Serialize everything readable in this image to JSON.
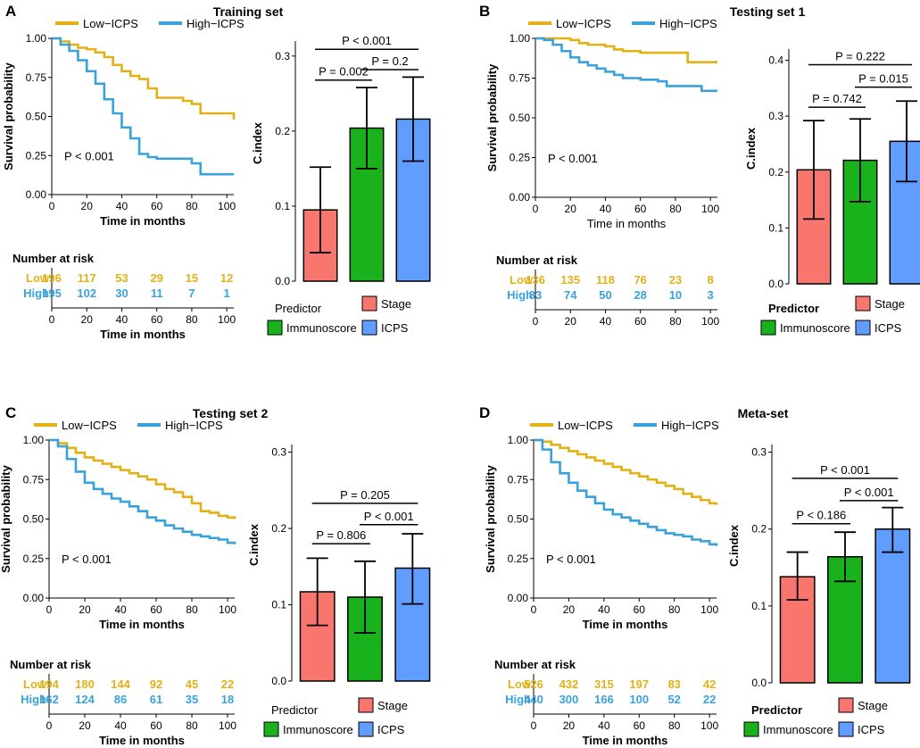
{
  "colors": {
    "low": "#E3B116",
    "high": "#39A2DB",
    "stage": "#F8766D",
    "immunoscore": "#19B21C",
    "icps": "#619CFF"
  },
  "chart_data": [
    {
      "label": "A",
      "title": "Training set",
      "km": {
        "type": "line",
        "legend": [
          "Low−ICPS",
          "High−ICPS"
        ],
        "ylabel": "Survival probability",
        "xlabel": "Time in months",
        "yticks": [
          "0.00",
          "0.25",
          "0.50",
          "0.75",
          "1.00"
        ],
        "xticks": [
          "0",
          "20",
          "40",
          "60",
          "80",
          "100"
        ],
        "xlim": [
          0,
          104
        ],
        "ylim": [
          0,
          1
        ],
        "pvalue": "P < 0.001",
        "series": [
          {
            "name": "Low-ICPS",
            "x": [
              0,
              5,
              10,
              15,
              20,
              25,
              30,
              35,
              40,
              45,
              50,
              55,
              60,
              65,
              70,
              75,
              80,
              85,
              90,
              95,
              100,
              104
            ],
            "y": [
              1,
              0.98,
              0.96,
              0.94,
              0.93,
              0.91,
              0.88,
              0.83,
              0.79,
              0.76,
              0.74,
              0.68,
              0.62,
              0.62,
              0.62,
              0.6,
              0.58,
              0.52,
              0.52,
              0.52,
              0.52,
              0.48
            ]
          },
          {
            "name": "High-ICPS",
            "x": [
              0,
              5,
              10,
              15,
              20,
              25,
              30,
              35,
              40,
              45,
              50,
              55,
              60,
              65,
              70,
              75,
              80,
              85,
              90,
              95,
              100,
              104
            ],
            "y": [
              1,
              0.96,
              0.92,
              0.86,
              0.79,
              0.71,
              0.61,
              0.52,
              0.43,
              0.36,
              0.26,
              0.24,
              0.23,
              0.23,
              0.23,
              0.23,
              0.2,
              0.13,
              0.13,
              0.13,
              0.13,
              0.13
            ]
          }
        ]
      },
      "risk": {
        "title": "Number at risk",
        "rows": [
          {
            "name": "Low",
            "values": [
              "196",
              "117",
              "53",
              "29",
              "15",
              "12"
            ]
          },
          {
            "name": "High",
            "values": [
              "195",
              "102",
              "30",
              "11",
              "7",
              "1"
            ]
          }
        ],
        "xticks": [
          "0",
          "20",
          "40",
          "60",
          "80",
          "100"
        ],
        "xlabel": "Time in months"
      },
      "bar": {
        "type": "bar",
        "ylabel": "C.index",
        "categories": [
          "Stage",
          "Immunoscore",
          "ICPS"
        ],
        "values": [
          0.095,
          0.204,
          0.216
        ],
        "err_lo": [
          0.038,
          0.15,
          0.16
        ],
        "err_hi": [
          0.152,
          0.258,
          0.272
        ],
        "ylim": [
          0,
          0.32
        ],
        "yticks": [
          "0.0",
          "0.1",
          "0.2",
          "0.3"
        ],
        "tick_values": [
          0,
          0.1,
          0.2,
          0.3
        ],
        "brackets": [
          {
            "text": "P = 0.002",
            "from": 0,
            "to": 1,
            "y": 0.268
          },
          {
            "text": "P = 0.2",
            "from": 1,
            "to": 2,
            "y": 0.282
          },
          {
            "text": "P < 0.001",
            "from": 0,
            "to": 2,
            "y": 0.309
          }
        ],
        "legend_title": "Predictor"
      }
    },
    {
      "label": "B",
      "title": "Testing set 1",
      "km": {
        "type": "line",
        "legend": [
          "Low−ICPS",
          "High−ICPS"
        ],
        "ylabel": "Survival probability",
        "xlabel": "Time in months",
        "yticks": [
          "0.00",
          "0.25",
          "0.50",
          "0.75",
          "1.00"
        ],
        "xticks": [
          "0",
          "20",
          "40",
          "60",
          "80",
          "100"
        ],
        "xlim": [
          0,
          104
        ],
        "ylim": [
          0,
          1
        ],
        "pvalue": "P < 0.001",
        "series": [
          {
            "name": "Low-ICPS",
            "x": [
              0,
              10,
              20,
              25,
              30,
              40,
              45,
              50,
              60,
              70,
              80,
              85,
              87,
              95,
              104
            ],
            "y": [
              1,
              1,
              0.99,
              0.97,
              0.96,
              0.95,
              0.93,
              0.92,
              0.91,
              0.91,
              0.91,
              0.91,
              0.85,
              0.85,
              0.85
            ]
          },
          {
            "name": "High-ICPS",
            "x": [
              0,
              5,
              10,
              15,
              20,
              25,
              30,
              35,
              40,
              45,
              50,
              60,
              70,
              75,
              80,
              90,
              95,
              104
            ],
            "y": [
              1,
              0.99,
              0.96,
              0.92,
              0.88,
              0.85,
              0.83,
              0.81,
              0.79,
              0.77,
              0.75,
              0.74,
              0.73,
              0.7,
              0.7,
              0.7,
              0.67,
              0.67
            ]
          }
        ]
      },
      "risk": {
        "title": "Number at risk",
        "rows": [
          {
            "name": "Low",
            "values": [
              "136",
              "135",
              "118",
              "76",
              "23",
              "8"
            ]
          },
          {
            "name": "High",
            "values": [
              "83",
              "74",
              "50",
              "28",
              "10",
              "3"
            ]
          }
        ],
        "xticks": [
          "0",
          "20",
          "40",
          "60",
          "80",
          "100"
        ],
        "xlabel": ""
      },
      "bar": {
        "type": "bar",
        "ylabel": "C.index",
        "categories": [
          "Stage",
          "Immunoscore",
          "ICPS"
        ],
        "values": [
          0.204,
          0.221,
          0.255
        ],
        "err_lo": [
          0.116,
          0.147,
          0.183
        ],
        "err_hi": [
          0.292,
          0.295,
          0.327
        ],
        "ylim": [
          0,
          0.42
        ],
        "yticks": [
          "0.0",
          "0.1",
          "0.2",
          "0.3",
          "0.4"
        ],
        "tick_values": [
          0,
          0.1,
          0.2,
          0.3,
          0.4
        ],
        "brackets": [
          {
            "text": "P = 0.742",
            "from": 0,
            "to": 1,
            "y": 0.316
          },
          {
            "text": "P = 0.015",
            "from": 1,
            "to": 2,
            "y": 0.352
          },
          {
            "text": "P = 0.222",
            "from": 0,
            "to": 2,
            "y": 0.392
          }
        ],
        "legend_title": "Predictor"
      }
    },
    {
      "label": "C",
      "title": "Testing set 2",
      "km": {
        "type": "line",
        "legend": [
          "Low−ICPS",
          "High−ICPS"
        ],
        "ylabel": "Survival probability",
        "xlabel": "Time in months",
        "yticks": [
          "0.00",
          "0.25",
          "0.50",
          "0.75",
          "1.00"
        ],
        "xticks": [
          "0",
          "20",
          "40",
          "60",
          "80",
          "100"
        ],
        "xlim": [
          0,
          104
        ],
        "ylim": [
          0,
          1
        ],
        "pvalue": "P < 0.001",
        "series": [
          {
            "name": "Low-ICPS",
            "x": [
              0,
              5,
              10,
              15,
              20,
              25,
              30,
              35,
              40,
              45,
              50,
              55,
              60,
              65,
              70,
              75,
              80,
              85,
              90,
              95,
              100,
              104
            ],
            "y": [
              1,
              0.98,
              0.95,
              0.92,
              0.89,
              0.87,
              0.85,
              0.83,
              0.81,
              0.79,
              0.77,
              0.75,
              0.72,
              0.69,
              0.67,
              0.64,
              0.6,
              0.55,
              0.54,
              0.52,
              0.51,
              0.5
            ]
          },
          {
            "name": "High-ICPS",
            "x": [
              0,
              5,
              10,
              15,
              20,
              25,
              30,
              35,
              40,
              45,
              50,
              55,
              60,
              65,
              70,
              75,
              80,
              85,
              90,
              95,
              100,
              104
            ],
            "y": [
              1,
              0.96,
              0.88,
              0.8,
              0.73,
              0.69,
              0.66,
              0.63,
              0.61,
              0.58,
              0.55,
              0.51,
              0.49,
              0.46,
              0.44,
              0.42,
              0.4,
              0.39,
              0.38,
              0.37,
              0.35,
              0.34
            ]
          }
        ]
      },
      "risk": {
        "title": "Number at risk",
        "rows": [
          {
            "name": "Low",
            "values": [
              "194",
              "180",
              "144",
              "92",
              "45",
              "22"
            ]
          },
          {
            "name": "High",
            "values": [
              "162",
              "124",
              "86",
              "61",
              "35",
              "18"
            ]
          }
        ],
        "xticks": [
          "0",
          "20",
          "40",
          "60",
          "80",
          "100"
        ],
        "xlabel": "Time in months"
      },
      "bar": {
        "type": "bar",
        "ylabel": "C.index",
        "categories": [
          "Stage",
          "Immunoscore",
          "ICPS"
        ],
        "values": [
          0.117,
          0.11,
          0.148
        ],
        "err_lo": [
          0.073,
          0.063,
          0.101
        ],
        "err_hi": [
          0.161,
          0.157,
          0.193
        ],
        "ylim": [
          0,
          0.31
        ],
        "yticks": [
          "0.0",
          "0.1",
          "0.2",
          "0.3"
        ],
        "tick_values": [
          0,
          0.1,
          0.2,
          0.3
        ],
        "brackets": [
          {
            "text": "P = 0.806",
            "from": 0,
            "to": 1,
            "y": 0.18
          },
          {
            "text": "P < 0.001",
            "from": 1,
            "to": 2,
            "y": 0.205
          },
          {
            "text": "P = 0.205",
            "from": 0,
            "to": 2,
            "y": 0.233
          }
        ],
        "legend_title": "Predictor"
      }
    },
    {
      "label": "D",
      "title": "Meta-set",
      "km": {
        "type": "line",
        "legend": [
          "Low−ICPS",
          "High−ICPS"
        ],
        "ylabel": "Survival probability",
        "xlabel": "Time in months",
        "yticks": [
          "0.00",
          "0.25",
          "0.50",
          "0.75",
          "1.00"
        ],
        "xticks": [
          "0",
          "20",
          "40",
          "60",
          "80",
          "100"
        ],
        "xlim": [
          0,
          104
        ],
        "ylim": [
          0,
          1
        ],
        "pvalue": "P < 0.001",
        "series": [
          {
            "name": "Low-ICPS",
            "x": [
              0,
              5,
              10,
              15,
              20,
              25,
              30,
              35,
              40,
              45,
              50,
              55,
              60,
              65,
              70,
              75,
              80,
              85,
              90,
              95,
              100,
              104
            ],
            "y": [
              1,
              0.99,
              0.97,
              0.95,
              0.93,
              0.91,
              0.89,
              0.87,
              0.85,
              0.83,
              0.81,
              0.79,
              0.77,
              0.75,
              0.73,
              0.71,
              0.69,
              0.66,
              0.64,
              0.62,
              0.6,
              0.59
            ]
          },
          {
            "name": "High-ICPS",
            "x": [
              0,
              5,
              10,
              15,
              20,
              25,
              30,
              35,
              40,
              45,
              50,
              55,
              60,
              65,
              70,
              75,
              80,
              85,
              90,
              95,
              100,
              104
            ],
            "y": [
              1,
              0.94,
              0.86,
              0.79,
              0.73,
              0.68,
              0.64,
              0.6,
              0.56,
              0.53,
              0.51,
              0.49,
              0.47,
              0.45,
              0.43,
              0.41,
              0.4,
              0.39,
              0.37,
              0.36,
              0.34,
              0.33
            ]
          }
        ]
      },
      "risk": {
        "title": "Number at risk",
        "rows": [
          {
            "name": "Low",
            "values": [
              "526",
              "432",
              "315",
              "197",
              "83",
              "42"
            ]
          },
          {
            "name": "High",
            "values": [
              "440",
              "300",
              "166",
              "100",
              "52",
              "22"
            ]
          }
        ],
        "xticks": [
          "0",
          "20",
          "40",
          "60",
          "80",
          "100"
        ],
        "xlabel": "Time in months"
      },
      "bar": {
        "type": "bar",
        "ylabel": "C.index",
        "categories": [
          "Stage",
          "Immunoscore",
          "ICPS"
        ],
        "values": [
          0.138,
          0.164,
          0.2
        ],
        "err_lo": [
          0.108,
          0.132,
          0.17
        ],
        "err_hi": [
          0.17,
          0.196,
          0.228
        ],
        "ylim": [
          0,
          0.31
        ],
        "yticks": [
          "0.0",
          "0.1",
          "0.2",
          "0.3"
        ],
        "tick_values": [
          0,
          0.1,
          0.2,
          0.3
        ],
        "brackets": [
          {
            "text": "P < 0.186",
            "from": 0,
            "to": 1,
            "y": 0.207
          },
          {
            "text": "P < 0.001",
            "from": 1,
            "to": 2,
            "y": 0.237
          },
          {
            "text": "P < 0.001",
            "from": 0,
            "to": 2,
            "y": 0.266
          }
        ],
        "legend_title": "Predictor"
      }
    }
  ]
}
